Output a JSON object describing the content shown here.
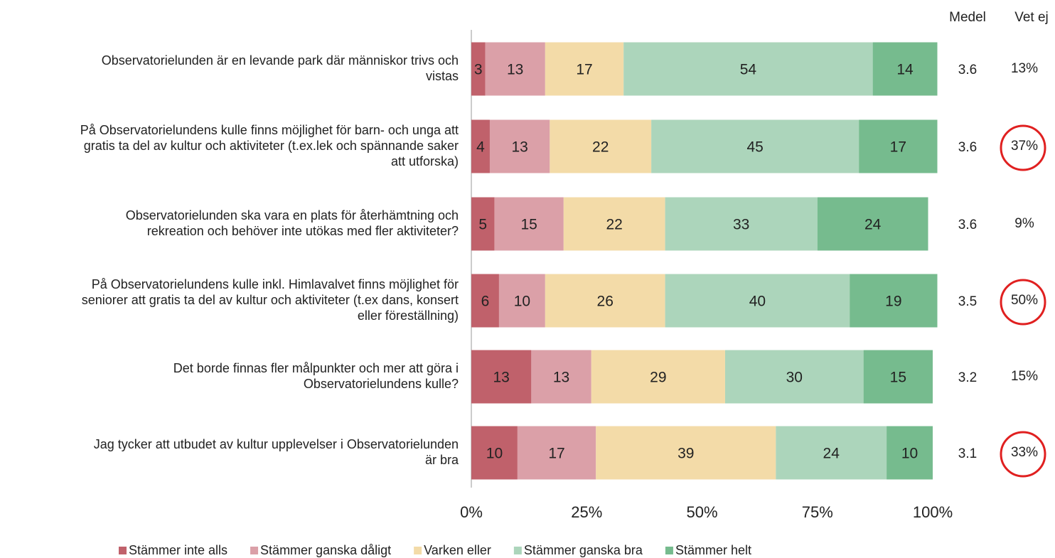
{
  "chart_data": {
    "type": "stacked_barh",
    "categories": [
      [
        "Observatorielunden är en levande park där människor trivs och",
        "vistas"
      ],
      [
        "På Observatorielundens kulle finns möjlighet för barn- och unga att",
        "gratis ta del av kultur och aktiviteter (t.ex.lek och spännande saker",
        "att utforska)"
      ],
      [
        "Observatorielunden ska vara en plats för återhämtning och",
        "rekreation och behöver inte utökas med fler aktiviteter?"
      ],
      [
        "På Observatorielundens kulle inkl. Himlavalvet finns möjlighet för",
        "seniorer att gratis ta del av kultur och aktiviteter (t.ex dans, konsert",
        "eller föreställning)"
      ],
      [
        "Det borde finnas fler målpunkter och mer att göra i",
        "Observatorielundens kulle?"
      ],
      [
        "Jag tycker att utbudet av kultur upplevelser i Observatorielunden",
        "är bra"
      ]
    ],
    "series": [
      {
        "name": "Stämmer inte alls",
        "color": "#c0616b",
        "values": [
          3,
          4,
          5,
          6,
          13,
          10
        ]
      },
      {
        "name": "Stämmer ganska dåligt",
        "color": "#dba0a8",
        "values": [
          13,
          13,
          15,
          10,
          13,
          17
        ]
      },
      {
        "name": "Varken eller",
        "color": "#f3dba8",
        "values": [
          17,
          22,
          22,
          26,
          29,
          39
        ]
      },
      {
        "name": "Stämmer ganska bra",
        "color": "#acd5bb",
        "values": [
          54,
          45,
          33,
          40,
          30,
          24
        ]
      },
      {
        "name": "Stämmer helt",
        "color": "#76bb8e",
        "values": [
          14,
          17,
          24,
          19,
          15,
          10
        ]
      }
    ],
    "xlim": [
      0,
      100
    ],
    "xticks": [
      {
        "value": 0,
        "label": "0%"
      },
      {
        "value": 25,
        "label": "25%"
      },
      {
        "value": 50,
        "label": "50%"
      },
      {
        "value": 75,
        "label": "75%"
      },
      {
        "value": 100,
        "label": "100%"
      }
    ],
    "medel": {
      "header": "Medel",
      "values": [
        3.6,
        3.6,
        3.6,
        3.5,
        3.2,
        3.1
      ]
    },
    "vet_ej": {
      "header": "Vet ej",
      "values": [
        13,
        37,
        9,
        50,
        15,
        33
      ],
      "value_labels": [
        "13%",
        "37%",
        "9%",
        "50%",
        "15%",
        "33%"
      ],
      "circled": [
        false,
        true,
        false,
        true,
        false,
        true
      ],
      "circle_color": "#e02020"
    },
    "header_color": "#6b4c6b",
    "legend": "bottom"
  }
}
